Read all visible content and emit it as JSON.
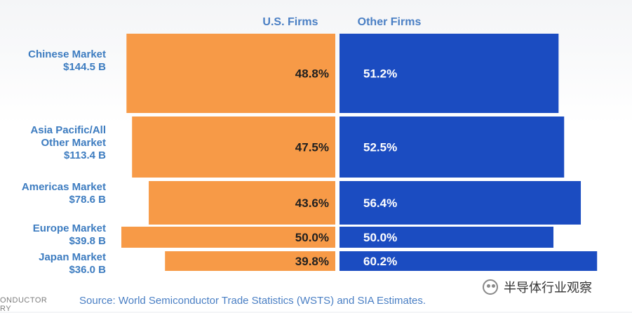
{
  "chart_data": {
    "type": "bar",
    "subtype": "market-share-split",
    "series": [
      {
        "name": "U.S. Firms",
        "color": "#f79a47",
        "values": [
          48.8,
          47.5,
          43.6,
          50.0,
          39.8
        ],
        "labels": [
          "48.8%",
          "47.5%",
          "43.6%",
          "50.0%",
          "39.8%"
        ]
      },
      {
        "name": "Other Firms",
        "color": "#1b4cc1",
        "values": [
          51.2,
          52.5,
          56.4,
          50.0,
          60.2
        ],
        "labels": [
          "51.2%",
          "52.5%",
          "56.4%",
          "50.0%",
          "60.2%"
        ]
      }
    ],
    "categories": [
      {
        "lines": [
          "Chinese Market",
          "$144.5 B"
        ],
        "market_size_billion": 144.5
      },
      {
        "lines": [
          "Asia Pacific/All",
          "Other Market",
          "$113.4 B"
        ],
        "market_size_billion": 113.4
      },
      {
        "lines": [
          "Americas Market",
          "$78.6 B"
        ],
        "market_size_billion": 78.6
      },
      {
        "lines": [
          "Europe Market",
          "$39.8 B"
        ],
        "market_size_billion": 39.8
      },
      {
        "lines": [
          "Japan Market",
          "$36.0 B"
        ],
        "market_size_billion": 36.0
      }
    ],
    "header_color": "#4a7fc4",
    "label_color": "#3d7cc0",
    "value_text_dark": "#1f1f1f",
    "value_text_light": "#ffffff"
  },
  "source": "Source: World Semiconductor Trade Statistics (WSTS) and SIA Estimates.",
  "corner_text": [
    "ONDUCTOR",
    "RY"
  ],
  "watermark": "半导体行业观察"
}
